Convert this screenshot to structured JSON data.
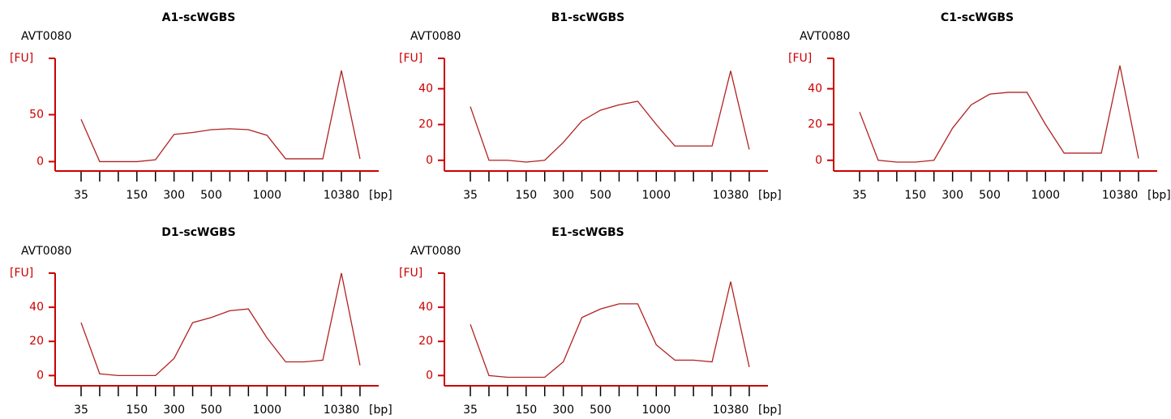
{
  "chart_data": [
    {
      "type": "line",
      "title": "A1-scWGBS",
      "subtitle": "AVT0080",
      "y_label": "[FU]",
      "x_label": "[bp]",
      "categories": [
        "35",
        null,
        null,
        "150",
        null,
        "300",
        null,
        "500",
        null,
        null,
        "1000",
        null,
        null,
        null,
        "10380",
        null
      ],
      "values": [
        45,
        0,
        0,
        0,
        2,
        29,
        31,
        34,
        35,
        34,
        28,
        3,
        3,
        3,
        97,
        3
      ],
      "color": "#b22222",
      "ylim": [
        -10,
        110
      ],
      "yticks": [
        0,
        50
      ]
    },
    {
      "type": "line",
      "title": "B1-scWGBS",
      "subtitle": "AVT0080",
      "y_label": "[FU]",
      "x_label": "[bp]",
      "categories": [
        "35",
        null,
        null,
        "150",
        null,
        "300",
        null,
        "500",
        null,
        null,
        "1000",
        null,
        null,
        null,
        "10380",
        null
      ],
      "values": [
        30,
        0,
        0,
        -1,
        0,
        10,
        22,
        28,
        31,
        33,
        20,
        8,
        8,
        8,
        50,
        6
      ],
      "color": "#b22222",
      "ylim": [
        -6,
        57
      ],
      "yticks": [
        0,
        20,
        40
      ]
    },
    {
      "type": "line",
      "title": "C1-scWGBS",
      "subtitle": "AVT0080",
      "y_label": "[FU]",
      "x_label": "[bp]",
      "categories": [
        "35",
        null,
        null,
        "150",
        null,
        "300",
        null,
        "500",
        null,
        null,
        "1000",
        null,
        null,
        null,
        "10380",
        null
      ],
      "values": [
        27,
        0,
        -1,
        -1,
        0,
        18,
        31,
        37,
        38,
        38,
        20,
        4,
        4,
        4,
        53,
        1
      ],
      "color": "#b22222",
      "ylim": [
        -6,
        57
      ],
      "yticks": [
        0,
        20,
        40
      ]
    },
    {
      "type": "line",
      "title": "D1-scWGBS",
      "subtitle": "AVT0080",
      "y_label": "[FU]",
      "x_label": "[bp]",
      "categories": [
        "35",
        null,
        null,
        "150",
        null,
        "300",
        null,
        "500",
        null,
        null,
        "1000",
        null,
        null,
        null,
        "10380",
        null
      ],
      "values": [
        31,
        1,
        0,
        0,
        0,
        10,
        31,
        34,
        38,
        39,
        22,
        8,
        8,
        9,
        60,
        6
      ],
      "color": "#b22222",
      "ylim": [
        -6,
        60
      ],
      "yticks": [
        0,
        20,
        40
      ]
    },
    {
      "type": "line",
      "title": "E1-scWGBS",
      "subtitle": "AVT0080",
      "y_label": "[FU]",
      "x_label": "[bp]",
      "categories": [
        "35",
        null,
        null,
        "150",
        null,
        "300",
        null,
        "500",
        null,
        null,
        "1000",
        null,
        null,
        null,
        "10380",
        null
      ],
      "values": [
        30,
        0,
        -1,
        -1,
        -1,
        8,
        34,
        39,
        42,
        42,
        18,
        9,
        9,
        8,
        55,
        5
      ],
      "color": "#b22222",
      "ylim": [
        -6,
        60
      ],
      "yticks": [
        0,
        20,
        40
      ]
    }
  ]
}
